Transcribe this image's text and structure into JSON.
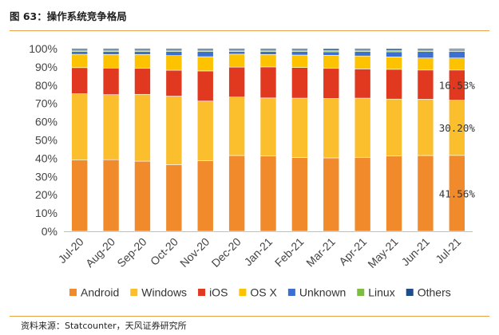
{
  "header": {
    "title": "图 63：操作系统竞争格局"
  },
  "footer": {
    "source": "资料来源：Statcounter，天风证券研究所"
  },
  "chart_data": {
    "type": "bar",
    "stacked": true,
    "percent": true,
    "categories": [
      "Jul-20",
      "Aug-20",
      "Sep-20",
      "Oct-20",
      "Nov-20",
      "Dec-20",
      "Jan-21",
      "Feb-21",
      "Mar-21",
      "Apr-21",
      "May-21",
      "Jun-21",
      "Jul-21"
    ],
    "ylim": [
      0,
      100
    ],
    "yticks": [
      "0%",
      "10%",
      "20%",
      "30%",
      "40%",
      "50%",
      "60%",
      "70%",
      "80%",
      "90%",
      "100%"
    ],
    "legend_position": "bottom",
    "series": [
      {
        "name": "Android",
        "color": "#f08a2a",
        "values": [
          39.0,
          39.2,
          38.4,
          36.5,
          38.6,
          41.5,
          41.2,
          40.4,
          40.2,
          40.5,
          41.2,
          41.5,
          41.56
        ]
      },
      {
        "name": "Windows",
        "color": "#fbbf2d",
        "values": [
          36.3,
          35.6,
          36.6,
          37.5,
          32.7,
          32.0,
          31.8,
          32.5,
          32.5,
          32.4,
          31.2,
          30.8,
          30.2
        ]
      },
      {
        "name": "iOS",
        "color": "#e0391f",
        "values": [
          14.3,
          14.6,
          14.2,
          14.2,
          16.5,
          16.4,
          17.0,
          16.8,
          16.5,
          16.0,
          16.3,
          16.0,
          16.53
        ]
      },
      {
        "name": "OS X",
        "color": "#fdc200",
        "values": [
          7.3,
          7.4,
          7.6,
          8.0,
          7.8,
          7.1,
          6.8,
          6.8,
          7.2,
          7.1,
          6.8,
          6.6,
          6.6
        ]
      },
      {
        "name": "Unknown",
        "color": "#3b6fd1",
        "values": [
          1.5,
          1.6,
          1.6,
          2.2,
          2.8,
          1.5,
          1.6,
          1.9,
          1.9,
          2.4,
          2.8,
          3.5,
          3.6
        ]
      },
      {
        "name": "Linux",
        "color": "#7cbd42",
        "values": [
          0.8,
          0.8,
          0.8,
          0.8,
          0.8,
          0.7,
          0.8,
          0.8,
          0.8,
          0.8,
          0.8,
          0.8,
          0.8
        ]
      },
      {
        "name": "Others",
        "color": "#1d4e89",
        "values": [
          0.8,
          0.8,
          0.8,
          0.8,
          0.8,
          0.8,
          0.8,
          0.8,
          0.9,
          0.8,
          0.9,
          0.8,
          0.71
        ]
      }
    ],
    "data_labels": [
      {
        "category": "Jul-21",
        "series": "Android",
        "text": "41.56%"
      },
      {
        "category": "Jul-21",
        "series": "Windows",
        "text": "30.20%"
      },
      {
        "category": "Jul-21",
        "series": "iOS",
        "text": "16.53%"
      }
    ]
  }
}
